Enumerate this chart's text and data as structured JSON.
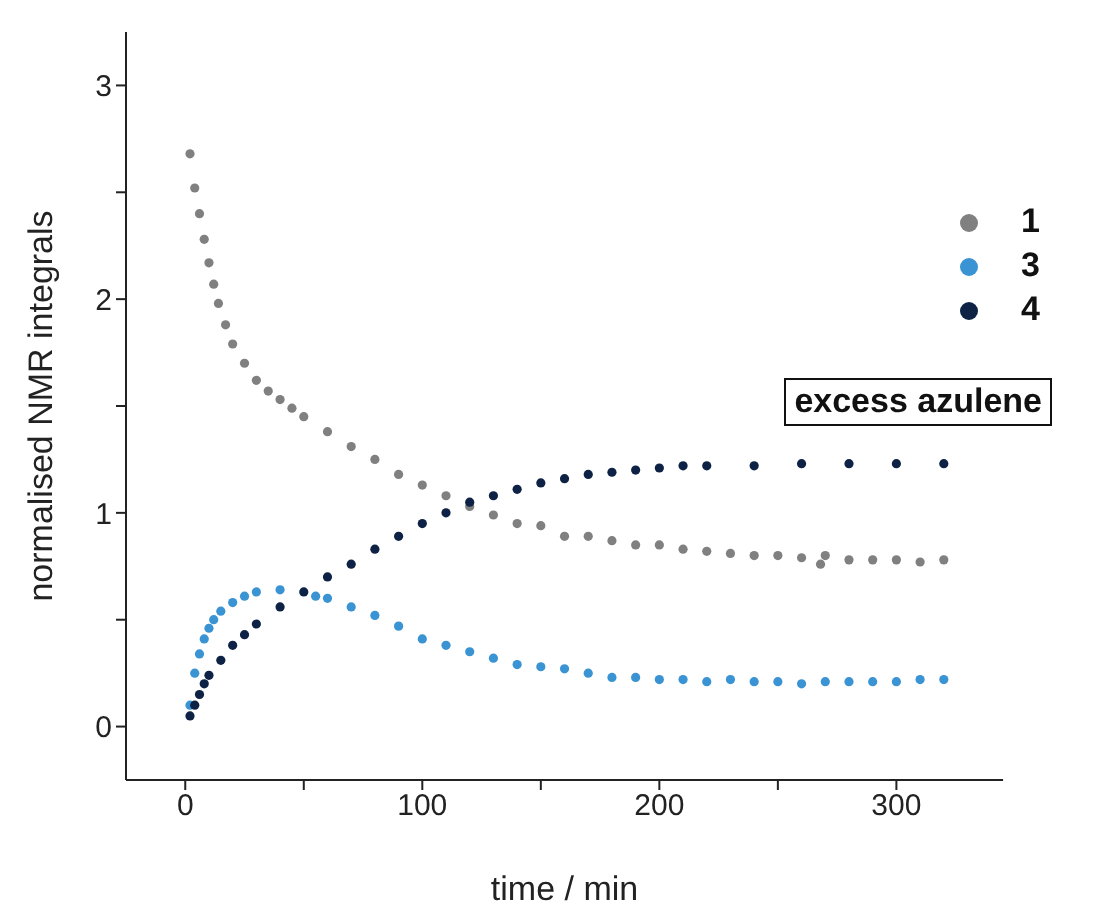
{
  "chart_data": {
    "type": "scatter",
    "xlabel": "time / min",
    "ylabel": "normalised NMR integrals",
    "xlim": [
      -25,
      345
    ],
    "ylim": [
      -0.25,
      3.25
    ],
    "xticks": [
      0,
      {
        "value": 50,
        "label": null
      },
      100,
      {
        "value": 150,
        "label": null
      },
      200,
      {
        "value": 250,
        "label": null
      },
      300
    ],
    "yticks": [
      0,
      {
        "value": 0.5,
        "label": null
      },
      1,
      {
        "value": 1.5,
        "label": null
      },
      2,
      {
        "value": 2.5,
        "label": null
      },
      3
    ],
    "grid": false,
    "legend": "top right",
    "marker": "circle",
    "annotations": [
      "excess azulene"
    ],
    "series": [
      {
        "name": "1",
        "color": "#808080",
        "x": [
          2,
          4,
          6,
          8,
          10,
          12,
          14,
          17,
          20,
          25,
          30,
          35,
          40,
          45,
          50,
          60,
          70,
          80,
          90,
          100,
          110,
          120,
          130,
          140,
          150,
          160,
          170,
          180,
          190,
          200,
          210,
          220,
          230,
          240,
          250,
          260,
          268,
          270,
          280,
          290,
          300,
          310,
          320
        ],
        "values": [
          2.68,
          2.52,
          2.4,
          2.28,
          2.17,
          2.07,
          1.98,
          1.88,
          1.79,
          1.7,
          1.62,
          1.57,
          1.53,
          1.49,
          1.45,
          1.38,
          1.31,
          1.25,
          1.18,
          1.13,
          1.08,
          1.03,
          0.99,
          0.95,
          0.94,
          0.89,
          0.89,
          0.87,
          0.85,
          0.85,
          0.83,
          0.82,
          0.81,
          0.8,
          0.8,
          0.79,
          0.76,
          0.8,
          0.78,
          0.78,
          0.78,
          0.77,
          0.78
        ]
      },
      {
        "name": "3",
        "color": "#3a93d3",
        "x": [
          2,
          4,
          6,
          8,
          10,
          12,
          15,
          20,
          25,
          30,
          40,
          55,
          60,
          70,
          80,
          90,
          100,
          110,
          120,
          130,
          140,
          150,
          160,
          170,
          180,
          190,
          200,
          210,
          220,
          230,
          240,
          250,
          260,
          270,
          280,
          290,
          300,
          310,
          320
        ],
        "values": [
          0.1,
          0.25,
          0.34,
          0.41,
          0.46,
          0.5,
          0.54,
          0.58,
          0.61,
          0.63,
          0.64,
          0.61,
          0.6,
          0.56,
          0.52,
          0.47,
          0.41,
          0.38,
          0.35,
          0.32,
          0.29,
          0.28,
          0.27,
          0.25,
          0.23,
          0.23,
          0.22,
          0.22,
          0.21,
          0.22,
          0.21,
          0.21,
          0.2,
          0.21,
          0.21,
          0.21,
          0.21,
          0.22,
          0.22
        ]
      },
      {
        "name": "4",
        "color": "#0d2244",
        "x": [
          2,
          4,
          6,
          8,
          10,
          15,
          20,
          25,
          30,
          40,
          50,
          60,
          70,
          80,
          90,
          100,
          110,
          120,
          130,
          140,
          150,
          160,
          170,
          180,
          190,
          200,
          210,
          220,
          240,
          260,
          280,
          300,
          320
        ],
        "values": [
          0.05,
          0.1,
          0.15,
          0.2,
          0.24,
          0.31,
          0.38,
          0.43,
          0.48,
          0.56,
          0.63,
          0.7,
          0.76,
          0.83,
          0.89,
          0.95,
          1.0,
          1.05,
          1.08,
          1.11,
          1.14,
          1.16,
          1.18,
          1.19,
          1.2,
          1.21,
          1.22,
          1.22,
          1.22,
          1.23,
          1.23,
          1.23,
          1.23
        ]
      }
    ]
  }
}
